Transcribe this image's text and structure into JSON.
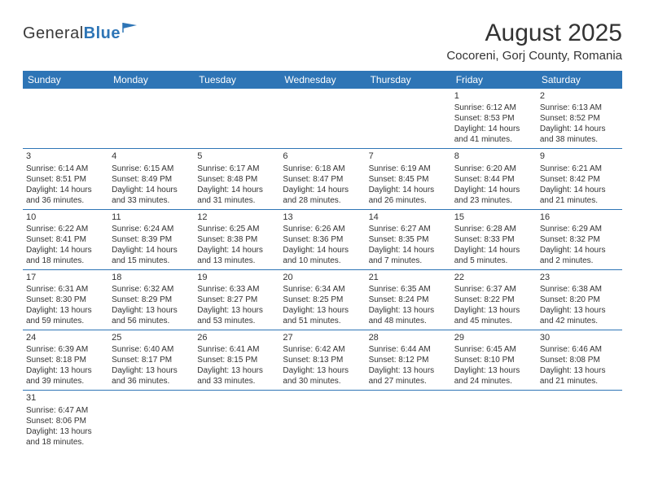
{
  "logo": {
    "text1": "General",
    "text2": "Blue"
  },
  "title": "August 2025",
  "location": "Cocoreni, Gorj County, Romania",
  "colors": {
    "header_bg": "#2e75b6",
    "header_text": "#ffffff",
    "border": "#2e75b6",
    "text": "#333333",
    "background": "#ffffff"
  },
  "day_headers": [
    "Sunday",
    "Monday",
    "Tuesday",
    "Wednesday",
    "Thursday",
    "Friday",
    "Saturday"
  ],
  "weeks": [
    [
      null,
      null,
      null,
      null,
      null,
      {
        "n": "1",
        "sr": "6:12 AM",
        "ss": "8:53 PM",
        "dl": "14 hours and 41 minutes."
      },
      {
        "n": "2",
        "sr": "6:13 AM",
        "ss": "8:52 PM",
        "dl": "14 hours and 38 minutes."
      }
    ],
    [
      {
        "n": "3",
        "sr": "6:14 AM",
        "ss": "8:51 PM",
        "dl": "14 hours and 36 minutes."
      },
      {
        "n": "4",
        "sr": "6:15 AM",
        "ss": "8:49 PM",
        "dl": "14 hours and 33 minutes."
      },
      {
        "n": "5",
        "sr": "6:17 AM",
        "ss": "8:48 PM",
        "dl": "14 hours and 31 minutes."
      },
      {
        "n": "6",
        "sr": "6:18 AM",
        "ss": "8:47 PM",
        "dl": "14 hours and 28 minutes."
      },
      {
        "n": "7",
        "sr": "6:19 AM",
        "ss": "8:45 PM",
        "dl": "14 hours and 26 minutes."
      },
      {
        "n": "8",
        "sr": "6:20 AM",
        "ss": "8:44 PM",
        "dl": "14 hours and 23 minutes."
      },
      {
        "n": "9",
        "sr": "6:21 AM",
        "ss": "8:42 PM",
        "dl": "14 hours and 21 minutes."
      }
    ],
    [
      {
        "n": "10",
        "sr": "6:22 AM",
        "ss": "8:41 PM",
        "dl": "14 hours and 18 minutes."
      },
      {
        "n": "11",
        "sr": "6:24 AM",
        "ss": "8:39 PM",
        "dl": "14 hours and 15 minutes."
      },
      {
        "n": "12",
        "sr": "6:25 AM",
        "ss": "8:38 PM",
        "dl": "14 hours and 13 minutes."
      },
      {
        "n": "13",
        "sr": "6:26 AM",
        "ss": "8:36 PM",
        "dl": "14 hours and 10 minutes."
      },
      {
        "n": "14",
        "sr": "6:27 AM",
        "ss": "8:35 PM",
        "dl": "14 hours and 7 minutes."
      },
      {
        "n": "15",
        "sr": "6:28 AM",
        "ss": "8:33 PM",
        "dl": "14 hours and 5 minutes."
      },
      {
        "n": "16",
        "sr": "6:29 AM",
        "ss": "8:32 PM",
        "dl": "14 hours and 2 minutes."
      }
    ],
    [
      {
        "n": "17",
        "sr": "6:31 AM",
        "ss": "8:30 PM",
        "dl": "13 hours and 59 minutes."
      },
      {
        "n": "18",
        "sr": "6:32 AM",
        "ss": "8:29 PM",
        "dl": "13 hours and 56 minutes."
      },
      {
        "n": "19",
        "sr": "6:33 AM",
        "ss": "8:27 PM",
        "dl": "13 hours and 53 minutes."
      },
      {
        "n": "20",
        "sr": "6:34 AM",
        "ss": "8:25 PM",
        "dl": "13 hours and 51 minutes."
      },
      {
        "n": "21",
        "sr": "6:35 AM",
        "ss": "8:24 PM",
        "dl": "13 hours and 48 minutes."
      },
      {
        "n": "22",
        "sr": "6:37 AM",
        "ss": "8:22 PM",
        "dl": "13 hours and 45 minutes."
      },
      {
        "n": "23",
        "sr": "6:38 AM",
        "ss": "8:20 PM",
        "dl": "13 hours and 42 minutes."
      }
    ],
    [
      {
        "n": "24",
        "sr": "6:39 AM",
        "ss": "8:18 PM",
        "dl": "13 hours and 39 minutes."
      },
      {
        "n": "25",
        "sr": "6:40 AM",
        "ss": "8:17 PM",
        "dl": "13 hours and 36 minutes."
      },
      {
        "n": "26",
        "sr": "6:41 AM",
        "ss": "8:15 PM",
        "dl": "13 hours and 33 minutes."
      },
      {
        "n": "27",
        "sr": "6:42 AM",
        "ss": "8:13 PM",
        "dl": "13 hours and 30 minutes."
      },
      {
        "n": "28",
        "sr": "6:44 AM",
        "ss": "8:12 PM",
        "dl": "13 hours and 27 minutes."
      },
      {
        "n": "29",
        "sr": "6:45 AM",
        "ss": "8:10 PM",
        "dl": "13 hours and 24 minutes."
      },
      {
        "n": "30",
        "sr": "6:46 AM",
        "ss": "8:08 PM",
        "dl": "13 hours and 21 minutes."
      }
    ],
    [
      {
        "n": "31",
        "sr": "6:47 AM",
        "ss": "8:06 PM",
        "dl": "13 hours and 18 minutes."
      },
      null,
      null,
      null,
      null,
      null,
      null
    ]
  ],
  "labels": {
    "sunrise": "Sunrise: ",
    "sunset": "Sunset: ",
    "daylight": "Daylight: "
  }
}
